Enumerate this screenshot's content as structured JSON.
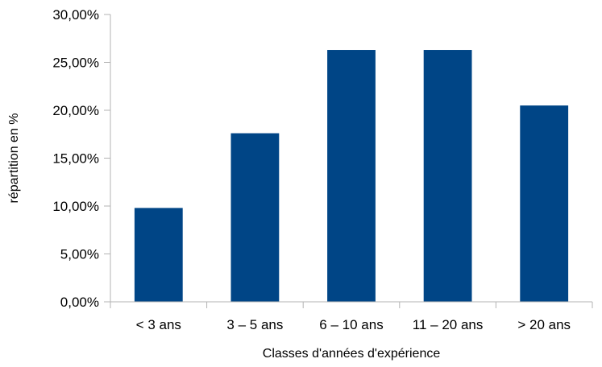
{
  "chart_data": {
    "type": "bar",
    "title": "",
    "xlabel": "Classes d'années d'expérience",
    "ylabel": "répartition en %",
    "categories": [
      "< 3 ans",
      "3 – 5 ans",
      "6 – 10 ans",
      "11 – 20 ans",
      "> 20 ans"
    ],
    "values": [
      9.8,
      17.6,
      26.3,
      26.3,
      20.5
    ],
    "ylim": [
      0,
      30
    ],
    "yticks": [
      "0,00%",
      "5,00%",
      "10,00%",
      "15,00%",
      "20,00%",
      "25,00%",
      "30,00%"
    ],
    "grid": false,
    "legend": "none",
    "bar_color": "#004586"
  }
}
